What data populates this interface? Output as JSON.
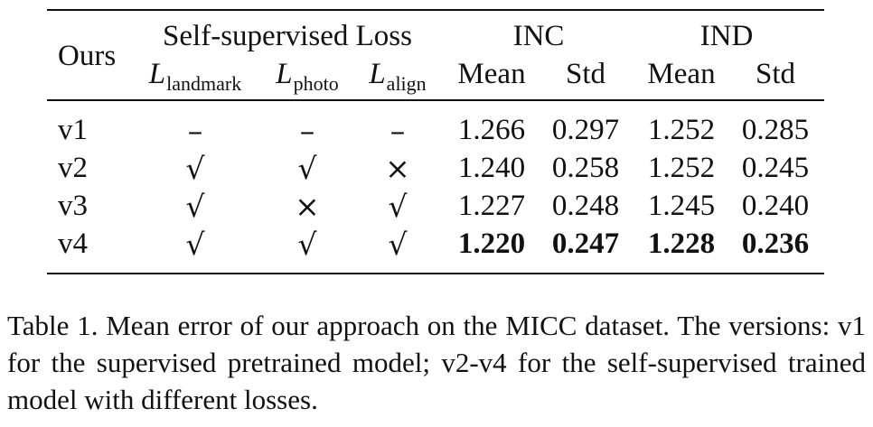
{
  "table": {
    "headers": {
      "ours": "Ours",
      "loss_group": "Self-supervised Loss",
      "inc": "INC",
      "ind": "IND",
      "loss_cols": [
        {
          "main": "L",
          "sub": "landmark"
        },
        {
          "main": "L",
          "sub": "photo"
        },
        {
          "main": "L",
          "sub": "align"
        }
      ],
      "stat_cols": [
        "Mean",
        "Std",
        "Mean",
        "Std"
      ]
    },
    "rows": [
      {
        "version": "v1",
        "landmark": "–",
        "photo": "–",
        "align": "–",
        "inc_mean": "1.266",
        "inc_std": "0.297",
        "ind_mean": "1.252",
        "ind_std": "0.285"
      },
      {
        "version": "v2",
        "landmark": "√",
        "photo": "√",
        "align": "×",
        "inc_mean": "1.240",
        "inc_std": "0.258",
        "ind_mean": "1.252",
        "ind_std": "0.245"
      },
      {
        "version": "v3",
        "landmark": "√",
        "photo": "×",
        "align": "√",
        "inc_mean": "1.227",
        "inc_std": "0.248",
        "ind_mean": "1.245",
        "ind_std": "0.240"
      },
      {
        "version": "v4",
        "landmark": "√",
        "photo": "√",
        "align": "√",
        "inc_mean": "1.220",
        "inc_std": "0.247",
        "ind_mean": "1.228",
        "ind_std": "0.236"
      }
    ]
  },
  "caption": "Table 1. Mean error of our approach on the MICC dataset. The versions: v1 for the supervised pretrained model; v2-v4 for the self-supervised trained model with different losses."
}
